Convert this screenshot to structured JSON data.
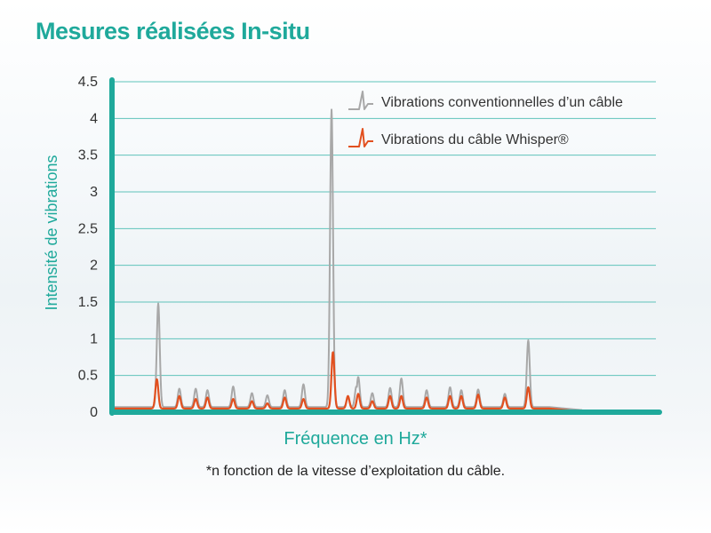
{
  "title": "Mesures réalisées In-situ",
  "footnote": "*n fonction de la vitesse d’exploitation du câble.",
  "chart_data": {
    "type": "line",
    "xlabel": "Fréquence en Hz*",
    "ylabel": "Intensité de vibrations",
    "ylim": [
      0,
      4.5
    ],
    "yticks": [
      "0",
      "0.5",
      "1",
      "1.5",
      "2",
      "2.5",
      "3",
      "3.5",
      "4",
      "4.5"
    ],
    "grid": true,
    "legend_position": "top-right",
    "colors": {
      "accent": "#1fa99b",
      "conventional": "#a8a8a8",
      "whisper": "#e2501f"
    },
    "series": [
      {
        "name": "Vibrations conventionnelles d’un câble",
        "color": "#a8a8a8",
        "baseline": 0.07,
        "peaks": [
          {
            "x": 0.095,
            "y": 1.48
          },
          {
            "x": 0.14,
            "y": 0.32
          },
          {
            "x": 0.175,
            "y": 0.32
          },
          {
            "x": 0.2,
            "y": 0.3
          },
          {
            "x": 0.255,
            "y": 0.35
          },
          {
            "x": 0.295,
            "y": 0.26
          },
          {
            "x": 0.328,
            "y": 0.23
          },
          {
            "x": 0.365,
            "y": 0.3
          },
          {
            "x": 0.405,
            "y": 0.38
          },
          {
            "x": 0.465,
            "y": 4.12
          },
          {
            "x": 0.5,
            "y": 0.2
          },
          {
            "x": 0.518,
            "y": 0.35
          },
          {
            "x": 0.522,
            "y": 0.48
          },
          {
            "x": 0.552,
            "y": 0.26
          },
          {
            "x": 0.59,
            "y": 0.33
          },
          {
            "x": 0.614,
            "y": 0.46
          },
          {
            "x": 0.668,
            "y": 0.3
          },
          {
            "x": 0.718,
            "y": 0.34
          },
          {
            "x": 0.742,
            "y": 0.3
          },
          {
            "x": 0.778,
            "y": 0.31
          },
          {
            "x": 0.835,
            "y": 0.25
          },
          {
            "x": 0.885,
            "y": 0.98
          }
        ]
      },
      {
        "name": "Vibrations du câble Whisper®",
        "color": "#e2501f",
        "baseline": 0.05,
        "peaks": [
          {
            "x": 0.092,
            "y": 0.45
          },
          {
            "x": 0.14,
            "y": 0.22
          },
          {
            "x": 0.175,
            "y": 0.18
          },
          {
            "x": 0.2,
            "y": 0.2
          },
          {
            "x": 0.255,
            "y": 0.18
          },
          {
            "x": 0.295,
            "y": 0.15
          },
          {
            "x": 0.328,
            "y": 0.12
          },
          {
            "x": 0.365,
            "y": 0.2
          },
          {
            "x": 0.405,
            "y": 0.18
          },
          {
            "x": 0.468,
            "y": 0.82
          },
          {
            "x": 0.5,
            "y": 0.22
          },
          {
            "x": 0.522,
            "y": 0.25
          },
          {
            "x": 0.552,
            "y": 0.15
          },
          {
            "x": 0.59,
            "y": 0.22
          },
          {
            "x": 0.614,
            "y": 0.22
          },
          {
            "x": 0.668,
            "y": 0.2
          },
          {
            "x": 0.718,
            "y": 0.22
          },
          {
            "x": 0.742,
            "y": 0.22
          },
          {
            "x": 0.778,
            "y": 0.24
          },
          {
            "x": 0.835,
            "y": 0.2
          },
          {
            "x": 0.885,
            "y": 0.34
          }
        ]
      }
    ]
  }
}
